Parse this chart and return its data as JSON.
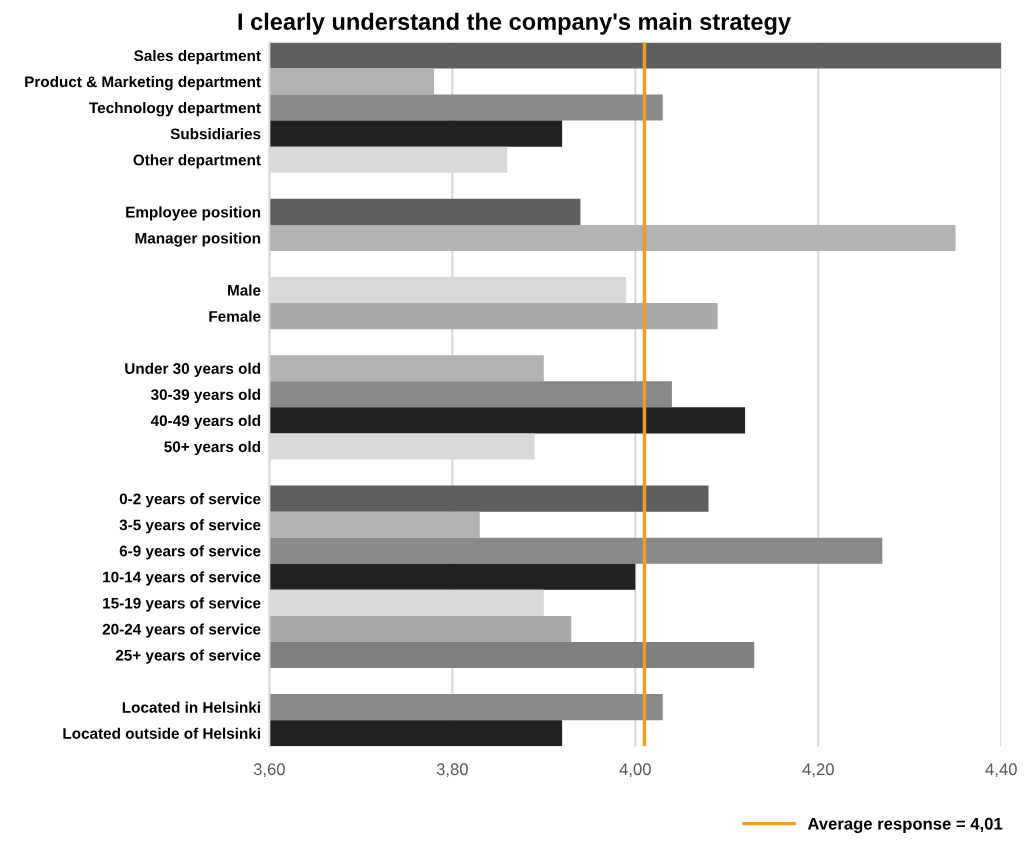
{
  "chart_data": {
    "type": "bar",
    "orientation": "horizontal",
    "title": "I clearly understand the company's main strategy",
    "categories": [
      "Sales department",
      "Product & Marketing department",
      "Technology department",
      "Subsidiaries",
      "Other department",
      null,
      "Employee position",
      "Manager position",
      null,
      "Male",
      "Female",
      null,
      "Under 30 years old",
      "30-39 years old",
      "40-49 years old",
      "50+ years old",
      null,
      "0-2 years of service",
      "3-5 years of service",
      "6-9 years of service",
      "10-14 years of service",
      "15-19 years of service",
      "20-24 years of service",
      "25+ years of service",
      null,
      "Located in Helsinki",
      "Located outside of Helsinki"
    ],
    "values": [
      4.4,
      3.78,
      4.03,
      3.92,
      3.86,
      null,
      3.94,
      4.35,
      null,
      3.99,
      4.09,
      null,
      3.9,
      4.04,
      4.12,
      3.89,
      null,
      4.08,
      3.83,
      4.27,
      4.0,
      3.9,
      3.93,
      4.13,
      null,
      4.03,
      3.92
    ],
    "colors": [
      "#5f5f5f",
      "#b2b2b2",
      "#898989",
      "#212121",
      "#d9d9d9",
      null,
      "#5f5f5f",
      "#b2b2b2",
      null,
      "#d9d9d9",
      "#a9a9a9",
      null,
      "#b2b2b2",
      "#898989",
      "#212121",
      "#d9d9d9",
      null,
      "#5f5f5f",
      "#b2b2b2",
      "#898989",
      "#212121",
      "#d9d9d9",
      "#a9a9a9",
      "#7f7f7f",
      null,
      "#898989",
      "#212121"
    ],
    "xlim": [
      3.6,
      4.4
    ],
    "xticks": [
      {
        "value": 3.6,
        "label": "3,60"
      },
      {
        "value": 3.8,
        "label": "3,80"
      },
      {
        "value": 4.0,
        "label": "4,00"
      },
      {
        "value": 4.2,
        "label": "4,20"
      },
      {
        "value": 4.4,
        "label": "4,40"
      }
    ],
    "ref_lines": [
      {
        "axis": "x",
        "value": 4.01,
        "label": "Average response = 4,01",
        "color": "#f59a23"
      }
    ],
    "grid": "x",
    "legend": "bottom right"
  }
}
